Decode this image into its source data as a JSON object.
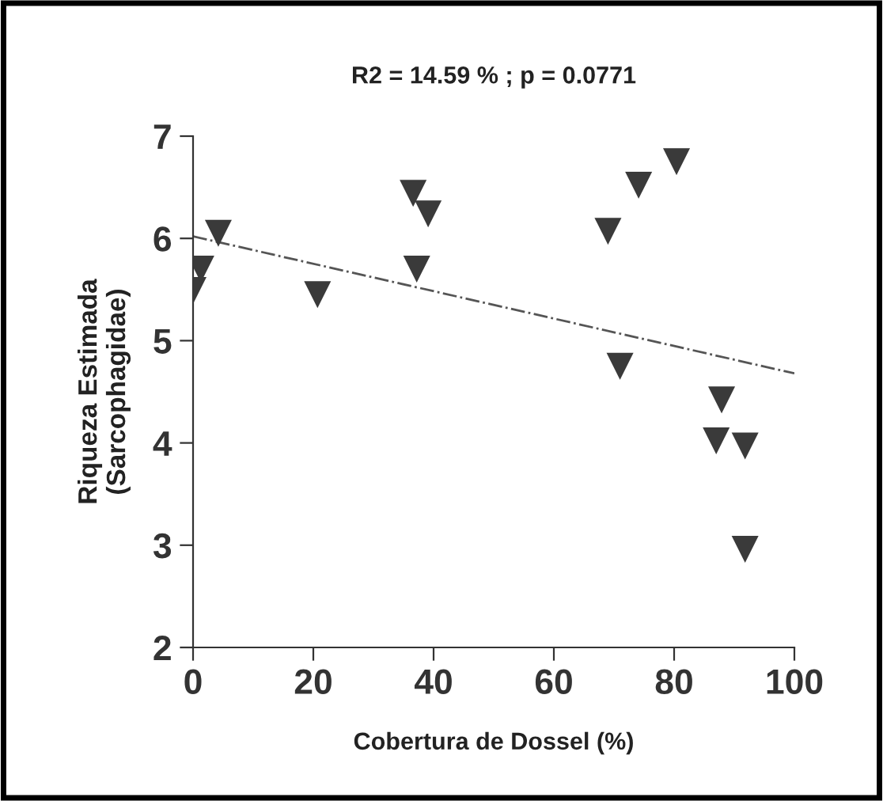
{
  "chart_data": {
    "type": "scatter",
    "title": "R2 = 14.59 % ; p = 0.0771",
    "xlabel": "Cobertura de Dossel (%)",
    "ylabel": "Riqueza Estimada\n(Sarcophagidae)",
    "xlim": [
      0,
      100
    ],
    "xticks": [
      0,
      20,
      40,
      60,
      80,
      100
    ],
    "ylim": [
      2,
      7
    ],
    "yticks": [
      2,
      3,
      4,
      5,
      6,
      7
    ],
    "grid": false,
    "series": [
      {
        "color": "#3a3a3a",
        "marker": "triangle",
        "x": [
          0,
          1.3,
          4.2,
          20.7,
          36.6,
          39.1,
          37.2,
          69.0,
          74.1,
          80.4,
          71.0,
          87.9,
          87.0,
          91.8,
          91.8
        ],
        "values": [
          5.49,
          5.7,
          6.05,
          5.45,
          6.44,
          6.24,
          5.7,
          6.07,
          6.52,
          6.75,
          4.75,
          4.42,
          4.02,
          3.97,
          2.96
        ]
      },
      {
        "type": "line",
        "color": "#555555",
        "line_style": "dashdot",
        "x": [
          0,
          100
        ],
        "values": [
          6.02,
          4.68
        ]
      }
    ]
  }
}
